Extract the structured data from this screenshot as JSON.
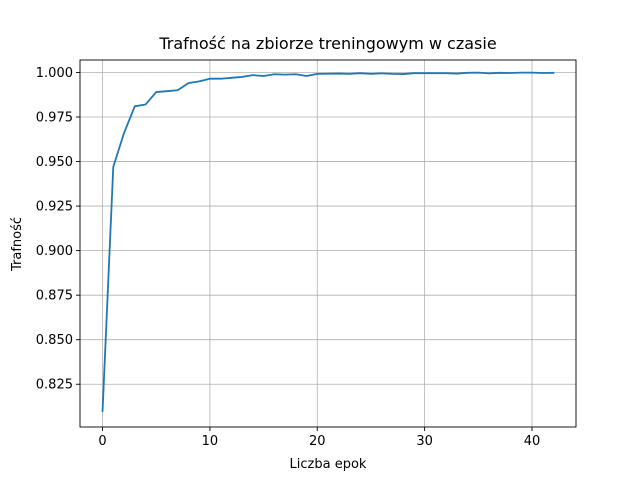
{
  "chart_data": {
    "type": "line",
    "title": "Trafność na zbiorze treningowym w czasie",
    "xlabel": "Liczba epok",
    "ylabel": "Trafność",
    "xlim": [
      -2.1,
      44.1
    ],
    "ylim": [
      0.801,
      1.007
    ],
    "xticks": [
      0,
      10,
      20,
      30,
      40
    ],
    "xtick_labels": [
      "0",
      "10",
      "20",
      "30",
      "40"
    ],
    "yticks": [
      0.825,
      0.85,
      0.875,
      0.9,
      0.925,
      0.95,
      0.975,
      1.0
    ],
    "ytick_labels": [
      "0.825",
      "0.850",
      "0.875",
      "0.900",
      "0.925",
      "0.950",
      "0.975",
      "1.000"
    ],
    "grid": true,
    "series": [
      {
        "color": "#1f77b4",
        "x": [
          0,
          1,
          2,
          3,
          4,
          5,
          6,
          7,
          8,
          9,
          10,
          11,
          12,
          13,
          14,
          15,
          16,
          17,
          18,
          19,
          20,
          21,
          22,
          23,
          24,
          25,
          26,
          27,
          28,
          29,
          30,
          31,
          32,
          33,
          34,
          35,
          36,
          37,
          38,
          39,
          40,
          41,
          42
        ],
        "y": [
          0.81,
          0.947,
          0.966,
          0.981,
          0.982,
          0.989,
          0.9895,
          0.99,
          0.994,
          0.995,
          0.9965,
          0.9965,
          0.997,
          0.9975,
          0.9985,
          0.998,
          0.999,
          0.9988,
          0.999,
          0.998,
          0.9992,
          0.9993,
          0.9994,
          0.9992,
          0.9996,
          0.9992,
          0.9995,
          0.9992,
          0.9991,
          0.9996,
          0.9996,
          0.9996,
          0.9996,
          0.9994,
          0.9998,
          0.9999,
          0.9995,
          0.9998,
          0.9997,
          0.9999,
          0.9999,
          0.9997,
          0.9998
        ]
      }
    ]
  }
}
